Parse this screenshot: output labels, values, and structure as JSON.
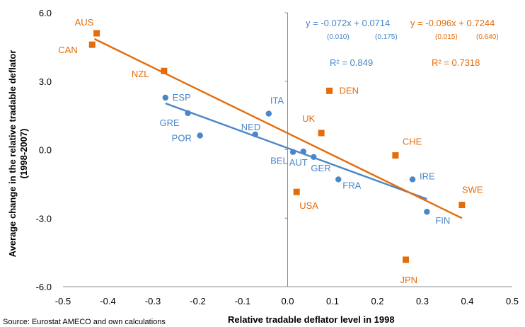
{
  "chart_data": {
    "type": "scatter",
    "title": "",
    "xlabel": "Relative tradable deflator level in 1998",
    "ylabel_line1": "Average change in the relative tradable deflator",
    "ylabel_line2": "(1998-2007)",
    "xlim": [
      -0.5,
      0.5
    ],
    "ylim": [
      -6.0,
      6.0
    ],
    "x_ticks": [
      -0.5,
      -0.4,
      -0.3,
      -0.2,
      -0.1,
      0.0,
      0.1,
      0.2,
      0.3,
      0.4,
      0.5
    ],
    "x_tick_labels": [
      "-0.5",
      "-0.4",
      "-0.3",
      "-0.2",
      "-0.1",
      "0.0",
      "0.1",
      "0.2",
      "0.3",
      "0.4",
      "0.5"
    ],
    "y_ticks": [
      -6.0,
      -3.0,
      0.0,
      3.0,
      6.0
    ],
    "y_tick_labels": [
      "-6.0",
      "-3.0",
      "0.0",
      "3.0",
      "6.0"
    ],
    "grid": false,
    "source": "Source: Eurostat AMECO and own calculations",
    "series": [
      {
        "color": "#4a86c8",
        "marker": "circle",
        "points": [
          {
            "label": "ESP",
            "x": -0.272,
            "y": 2.28
          },
          {
            "label": "GRE",
            "x": -0.222,
            "y": 1.6
          },
          {
            "label": "POR",
            "x": -0.195,
            "y": 0.62
          },
          {
            "label": "ITA",
            "x": -0.042,
            "y": 1.58
          },
          {
            "label": "NED",
            "x": -0.072,
            "y": 0.67
          },
          {
            "label": "BEL",
            "x": 0.012,
            "y": -0.1
          },
          {
            "label": "AUT",
            "x": 0.035,
            "y": -0.08
          },
          {
            "label": "GER",
            "x": 0.058,
            "y": -0.32
          },
          {
            "label": "FRA",
            "x": 0.113,
            "y": -1.3
          },
          {
            "label": "IRE",
            "x": 0.278,
            "y": -1.3
          },
          {
            "label": "FIN",
            "x": 0.31,
            "y": -2.72
          }
        ],
        "fit": {
          "x_range": [
            -0.272,
            0.31
          ],
          "equation": "y = -0.072x + 0.0714",
          "se_slope": "(0.010)",
          "se_intercept": "(0.175)",
          "r2": "R² = 0.849"
        }
      },
      {
        "color": "#e46c0a",
        "marker": "square",
        "points": [
          {
            "label": "AUS",
            "x": -0.425,
            "y": 5.1
          },
          {
            "label": "CAN",
            "x": -0.435,
            "y": 4.6
          },
          {
            "label": "NZL",
            "x": -0.275,
            "y": 3.45
          },
          {
            "label": "DEN",
            "x": 0.093,
            "y": 2.58
          },
          {
            "label": "UK",
            "x": 0.075,
            "y": 0.73
          },
          {
            "label": "CHE",
            "x": 0.24,
            "y": -0.25
          },
          {
            "label": "SWE",
            "x": 0.388,
            "y": -2.42
          },
          {
            "label": "USA",
            "x": 0.02,
            "y": -1.85
          },
          {
            "label": "JPN",
            "x": 0.263,
            "y": -4.82
          }
        ],
        "fit": {
          "x_range": [
            -0.43,
            0.388
          ],
          "equation": "y = -0.096x + 0.7244",
          "se_slope": "(0.015)",
          "se_intercept": "(0.640)",
          "r2": "R² = 0.7318"
        }
      }
    ]
  }
}
